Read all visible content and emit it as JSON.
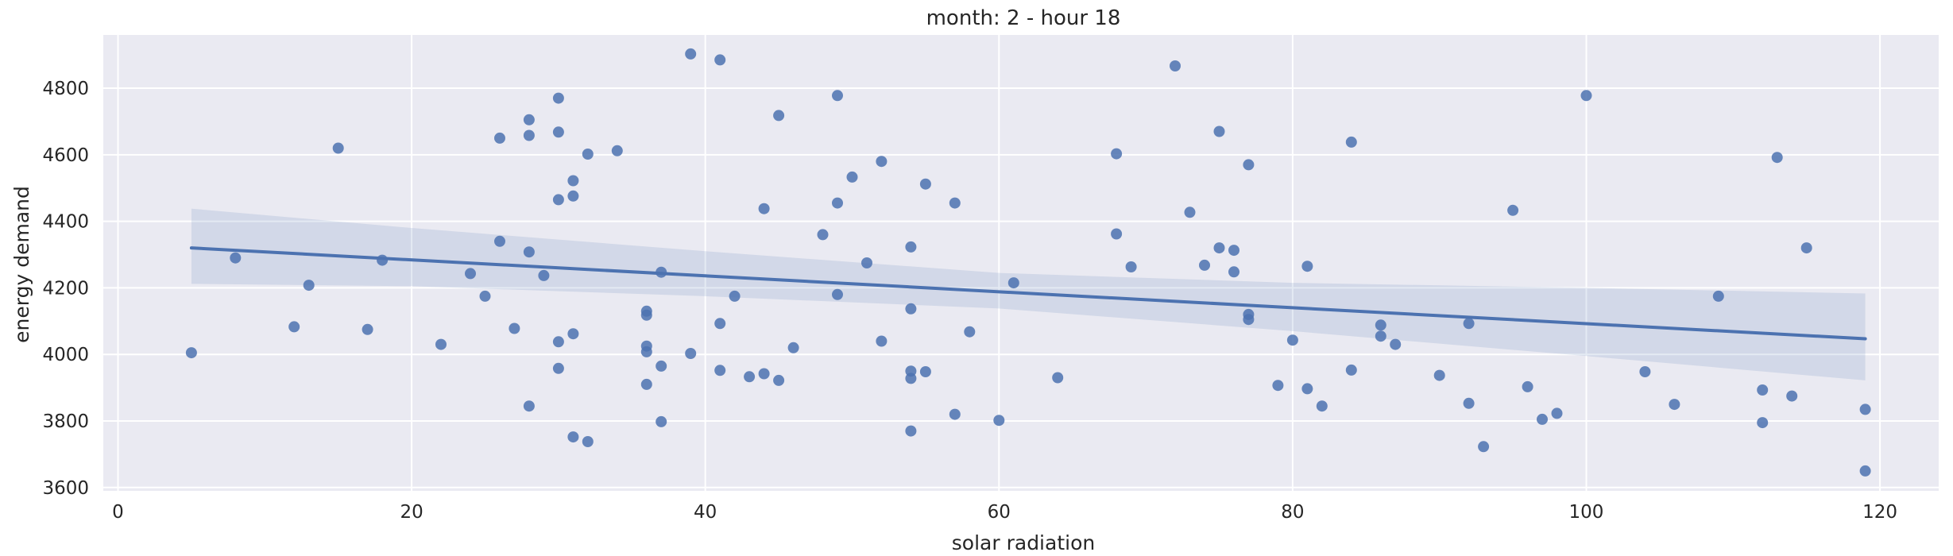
{
  "chart_data": {
    "type": "scatter",
    "title": "month: 2 - hour 18",
    "xlabel": "solar radiation",
    "ylabel": "energy demand",
    "xlim": [
      -1,
      124
    ],
    "ylim": [
      3590,
      4960
    ],
    "xticks": [
      0,
      20,
      40,
      60,
      80,
      100,
      120
    ],
    "yticks": [
      3600,
      3800,
      4000,
      4200,
      4400,
      4600,
      4800
    ],
    "grid": true,
    "legend": "none",
    "colors": {
      "background": "#eaeaf2",
      "grid": "#ffffff",
      "points": "#4c72b0",
      "line": "#4c72b0",
      "band": "#4c72b0"
    },
    "points": [
      {
        "x": 5,
        "y": 4005
      },
      {
        "x": 8,
        "y": 4290
      },
      {
        "x": 12,
        "y": 4083
      },
      {
        "x": 13,
        "y": 4208
      },
      {
        "x": 15,
        "y": 4620
      },
      {
        "x": 17,
        "y": 4075
      },
      {
        "x": 18,
        "y": 4283
      },
      {
        "x": 22,
        "y": 4030
      },
      {
        "x": 24,
        "y": 4243
      },
      {
        "x": 25,
        "y": 4175
      },
      {
        "x": 26,
        "y": 4650
      },
      {
        "x": 26,
        "y": 4340
      },
      {
        "x": 27,
        "y": 4078
      },
      {
        "x": 28,
        "y": 4705
      },
      {
        "x": 28,
        "y": 4658
      },
      {
        "x": 28,
        "y": 4308
      },
      {
        "x": 28,
        "y": 3845
      },
      {
        "x": 29,
        "y": 4237
      },
      {
        "x": 30,
        "y": 4770
      },
      {
        "x": 30,
        "y": 4668
      },
      {
        "x": 30,
        "y": 4465
      },
      {
        "x": 30,
        "y": 4038
      },
      {
        "x": 30,
        "y": 3958
      },
      {
        "x": 31,
        "y": 4522
      },
      {
        "x": 31,
        "y": 4476
      },
      {
        "x": 31,
        "y": 4062
      },
      {
        "x": 31,
        "y": 3752
      },
      {
        "x": 32,
        "y": 4602
      },
      {
        "x": 32,
        "y": 3738
      },
      {
        "x": 34,
        "y": 4612
      },
      {
        "x": 36,
        "y": 4130
      },
      {
        "x": 36,
        "y": 4118
      },
      {
        "x": 36,
        "y": 4025
      },
      {
        "x": 36,
        "y": 4008
      },
      {
        "x": 36,
        "y": 3910
      },
      {
        "x": 37,
        "y": 4247
      },
      {
        "x": 37,
        "y": 3965
      },
      {
        "x": 37,
        "y": 3798
      },
      {
        "x": 39,
        "y": 4903
      },
      {
        "x": 39,
        "y": 4003
      },
      {
        "x": 41,
        "y": 4885
      },
      {
        "x": 41,
        "y": 4093
      },
      {
        "x": 41,
        "y": 3952
      },
      {
        "x": 42,
        "y": 4175
      },
      {
        "x": 43,
        "y": 3933
      },
      {
        "x": 44,
        "y": 4438
      },
      {
        "x": 44,
        "y": 3942
      },
      {
        "x": 45,
        "y": 4718
      },
      {
        "x": 45,
        "y": 3922
      },
      {
        "x": 46,
        "y": 4020
      },
      {
        "x": 48,
        "y": 4360
      },
      {
        "x": 49,
        "y": 4778
      },
      {
        "x": 49,
        "y": 4455
      },
      {
        "x": 49,
        "y": 4180
      },
      {
        "x": 50,
        "y": 4533
      },
      {
        "x": 51,
        "y": 4275
      },
      {
        "x": 52,
        "y": 4580
      },
      {
        "x": 52,
        "y": 4040
      },
      {
        "x": 54,
        "y": 4323
      },
      {
        "x": 54,
        "y": 4137
      },
      {
        "x": 54,
        "y": 3950
      },
      {
        "x": 54,
        "y": 3928
      },
      {
        "x": 54,
        "y": 3770
      },
      {
        "x": 55,
        "y": 4512
      },
      {
        "x": 55,
        "y": 3948
      },
      {
        "x": 57,
        "y": 4455
      },
      {
        "x": 57,
        "y": 3820
      },
      {
        "x": 58,
        "y": 4068
      },
      {
        "x": 60,
        "y": 3802
      },
      {
        "x": 61,
        "y": 4215
      },
      {
        "x": 64,
        "y": 3930
      },
      {
        "x": 68,
        "y": 4603
      },
      {
        "x": 68,
        "y": 4362
      },
      {
        "x": 69,
        "y": 4263
      },
      {
        "x": 72,
        "y": 4867
      },
      {
        "x": 73,
        "y": 4427
      },
      {
        "x": 74,
        "y": 4268
      },
      {
        "x": 75,
        "y": 4670
      },
      {
        "x": 75,
        "y": 4320
      },
      {
        "x": 76,
        "y": 4313
      },
      {
        "x": 76,
        "y": 4248
      },
      {
        "x": 77,
        "y": 4570
      },
      {
        "x": 77,
        "y": 4120
      },
      {
        "x": 77,
        "y": 4105
      },
      {
        "x": 79,
        "y": 3907
      },
      {
        "x": 80,
        "y": 4043
      },
      {
        "x": 81,
        "y": 4265
      },
      {
        "x": 81,
        "y": 3897
      },
      {
        "x": 82,
        "y": 3845
      },
      {
        "x": 84,
        "y": 4638
      },
      {
        "x": 84,
        "y": 3953
      },
      {
        "x": 86,
        "y": 4088
      },
      {
        "x": 86,
        "y": 4055
      },
      {
        "x": 87,
        "y": 4030
      },
      {
        "x": 90,
        "y": 3937
      },
      {
        "x": 92,
        "y": 4093
      },
      {
        "x": 92,
        "y": 3853
      },
      {
        "x": 93,
        "y": 3723
      },
      {
        "x": 95,
        "y": 4433
      },
      {
        "x": 96,
        "y": 3903
      },
      {
        "x": 97,
        "y": 3805
      },
      {
        "x": 98,
        "y": 3823
      },
      {
        "x": 100,
        "y": 4778
      },
      {
        "x": 104,
        "y": 3948
      },
      {
        "x": 106,
        "y": 3850
      },
      {
        "x": 109,
        "y": 4175
      },
      {
        "x": 112,
        "y": 3893
      },
      {
        "x": 112,
        "y": 3795
      },
      {
        "x": 113,
        "y": 4592
      },
      {
        "x": 114,
        "y": 3875
      },
      {
        "x": 115,
        "y": 4320
      },
      {
        "x": 119,
        "y": 3835
      },
      {
        "x": 119,
        "y": 3650
      }
    ],
    "regression": {
      "x": [
        5,
        119
      ],
      "y": [
        4320,
        4047
      ]
    },
    "confidence_band": {
      "x": [
        5,
        20,
        40,
        60,
        80,
        100,
        119
      ],
      "upper": [
        4438,
        4380,
        4310,
        4245,
        4215,
        4200,
        4183
      ],
      "lower": [
        4212,
        4205,
        4175,
        4138,
        4070,
        3995,
        3922
      ]
    }
  }
}
